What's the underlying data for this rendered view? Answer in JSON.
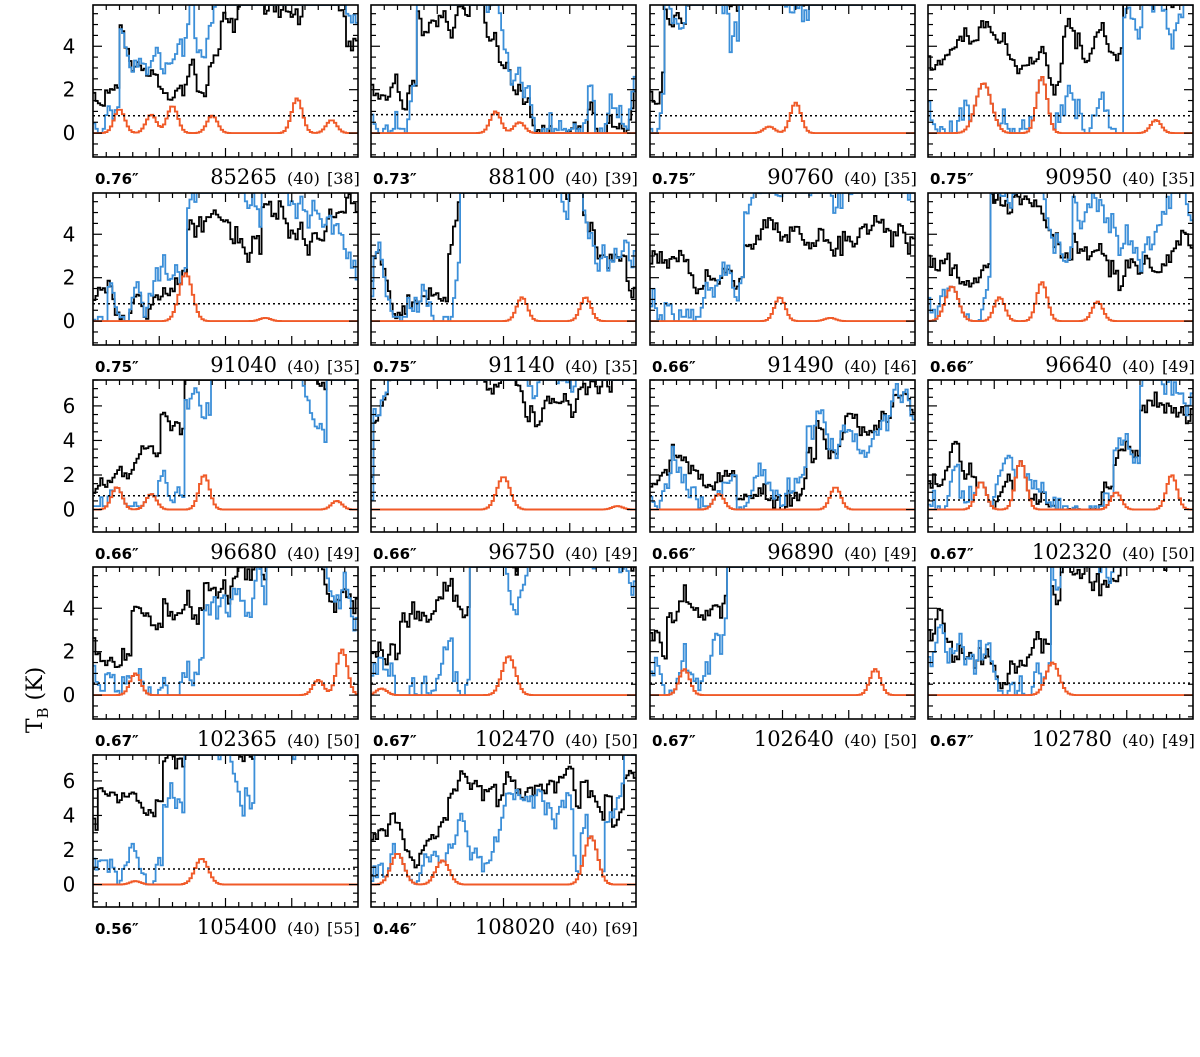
{
  "chart_data": {
    "type": "line",
    "ylabel": "T",
    "ylabel_sub": "B",
    "ylabel_unit": " (K)",
    "series_styles": [
      {
        "name": "observed",
        "color": "#000000"
      },
      {
        "name": "model_all",
        "color": "#3c8fd8"
      },
      {
        "name": "model_species",
        "color": "#f05a28"
      }
    ],
    "panels": [
      {
        "id": "p1",
        "freq": "85265",
        "width": "(40)",
        "index": "[38]",
        "beam": "0.76″",
        "ylim": [
          -1.1,
          5.9
        ],
        "yticks": [
          0,
          2,
          4
        ],
        "noise": 0.8,
        "seed": 11,
        "peaks": [
          [
            0.1,
            1.1,
            0.02
          ],
          [
            0.22,
            0.85,
            0.02
          ],
          [
            0.3,
            1.25,
            0.02
          ],
          [
            0.45,
            0.8,
            0.02
          ],
          [
            0.77,
            1.6,
            0.02
          ],
          [
            0.9,
            0.6,
            0.02
          ]
        ]
      },
      {
        "id": "p2",
        "freq": "88100",
        "width": "(40)",
        "index": "[39]",
        "beam": "0.73″",
        "ylim": [
          -1.1,
          5.9
        ],
        "yticks": [
          0,
          2,
          4
        ],
        "noise": 0.85,
        "seed": 23,
        "peaks": [
          [
            0.47,
            1.0,
            0.02
          ],
          [
            0.56,
            0.5,
            0.02
          ]
        ]
      },
      {
        "id": "p3",
        "freq": "90760",
        "width": "(40)",
        "index": "[35]",
        "beam": "0.75″",
        "ylim": [
          -1.1,
          5.9
        ],
        "yticks": [
          0,
          2,
          4
        ],
        "noise": 0.8,
        "seed": 37,
        "peaks": [
          [
            0.55,
            1.4,
            0.02
          ],
          [
            0.45,
            0.3,
            0.02
          ]
        ]
      },
      {
        "id": "p4",
        "freq": "90950",
        "width": "(40)",
        "index": "[35]",
        "beam": "0.75″",
        "ylim": [
          -1.1,
          5.9
        ],
        "yticks": [
          0,
          2,
          4
        ],
        "noise": 0.8,
        "seed": 41,
        "peaks": [
          [
            0.21,
            2.3,
            0.03
          ],
          [
            0.43,
            2.6,
            0.02
          ],
          [
            0.86,
            0.6,
            0.02
          ]
        ]
      },
      {
        "id": "p5",
        "freq": "91040",
        "width": "(40)",
        "index": "[35]",
        "beam": "0.75″",
        "ylim": [
          -1.1,
          5.9
        ],
        "yticks": [
          0,
          2,
          4
        ],
        "noise": 0.8,
        "seed": 53,
        "peaks": [
          [
            0.35,
            2.2,
            0.025
          ],
          [
            0.65,
            0.15,
            0.02
          ]
        ]
      },
      {
        "id": "p6",
        "freq": "91140",
        "width": "(40)",
        "index": "[35]",
        "beam": "0.75″",
        "ylim": [
          -1.1,
          5.9
        ],
        "yticks": [
          0,
          2,
          4
        ],
        "noise": 0.8,
        "seed": 67,
        "peaks": [
          [
            0.57,
            1.1,
            0.02
          ],
          [
            0.81,
            1.1,
            0.02
          ]
        ]
      },
      {
        "id": "p7",
        "freq": "91490",
        "width": "(40)",
        "index": "[46]",
        "beam": "0.66″",
        "ylim": [
          -1.1,
          5.9
        ],
        "yticks": [
          0,
          2,
          4
        ],
        "noise": 0.8,
        "seed": 71,
        "peaks": [
          [
            0.49,
            1.1,
            0.02
          ],
          [
            0.68,
            0.15,
            0.02
          ]
        ]
      },
      {
        "id": "p8",
        "freq": "96640",
        "width": "(40)",
        "index": "[49]",
        "beam": "0.66″",
        "ylim": [
          -1.1,
          5.9
        ],
        "yticks": [
          0,
          2,
          4
        ],
        "noise": 0.8,
        "seed": 83,
        "peaks": [
          [
            0.09,
            1.6,
            0.025
          ],
          [
            0.27,
            1.1,
            0.02
          ],
          [
            0.43,
            1.8,
            0.02
          ],
          [
            0.64,
            0.9,
            0.02
          ]
        ]
      },
      {
        "id": "p9",
        "freq": "96680",
        "width": "(40)",
        "index": "[49]",
        "beam": "0.66″",
        "ylim": [
          -1.3,
          7.5
        ],
        "yticks": [
          0,
          2,
          4,
          6
        ],
        "noise": 0.8,
        "seed": 97,
        "peaks": [
          [
            0.09,
            1.3,
            0.02
          ],
          [
            0.22,
            0.9,
            0.02
          ],
          [
            0.42,
            2.0,
            0.02
          ],
          [
            0.92,
            0.5,
            0.02
          ]
        ]
      },
      {
        "id": "p10",
        "freq": "96750",
        "width": "(40)",
        "index": "[49]",
        "beam": "0.66″",
        "ylim": [
          -1.3,
          7.5
        ],
        "yticks": [
          0,
          2,
          4,
          6
        ],
        "noise": 0.8,
        "seed": 103,
        "peaks": [
          [
            0.5,
            1.9,
            0.025
          ],
          [
            0.93,
            0.2,
            0.02
          ]
        ]
      },
      {
        "id": "p11",
        "freq": "96890",
        "width": "(40)",
        "index": "[49]",
        "beam": "0.66″",
        "ylim": [
          -1.3,
          7.5
        ],
        "yticks": [
          0,
          2,
          4,
          6
        ],
        "noise": 0.8,
        "seed": 109,
        "peaks": [
          [
            0.26,
            0.9,
            0.02
          ],
          [
            0.7,
            1.3,
            0.02
          ]
        ]
      },
      {
        "id": "p12",
        "freq": "102320",
        "width": "(40)",
        "index": "[50]",
        "beam": "0.67″",
        "ylim": [
          -1.3,
          7.5
        ],
        "yticks": [
          0,
          2,
          4,
          6
        ],
        "noise": 0.55,
        "seed": 113,
        "peaks": [
          [
            0.2,
            1.6,
            0.02
          ],
          [
            0.35,
            2.8,
            0.02
          ],
          [
            0.71,
            1.0,
            0.02
          ],
          [
            0.92,
            2.0,
            0.02
          ]
        ]
      },
      {
        "id": "p13",
        "freq": "102365",
        "width": "(40)",
        "index": "[50]",
        "beam": "0.67″",
        "ylim": [
          -1.1,
          5.9
        ],
        "yticks": [
          0,
          2,
          4
        ],
        "noise": 0.55,
        "seed": 127,
        "peaks": [
          [
            0.16,
            1.0,
            0.02
          ],
          [
            0.85,
            0.7,
            0.02
          ],
          [
            0.94,
            2.1,
            0.02
          ]
        ]
      },
      {
        "id": "p14",
        "freq": "102470",
        "width": "(40)",
        "index": "[50]",
        "beam": "0.67″",
        "ylim": [
          -1.1,
          5.9
        ],
        "yticks": [
          0,
          2,
          4
        ],
        "noise": 0.55,
        "seed": 131,
        "peaks": [
          [
            0.04,
            0.3,
            0.02
          ],
          [
            0.52,
            1.8,
            0.025
          ]
        ]
      },
      {
        "id": "p15",
        "freq": "102640",
        "width": "(40)",
        "index": "[50]",
        "beam": "0.67″",
        "ylim": [
          -1.1,
          5.9
        ],
        "yticks": [
          0,
          2,
          4
        ],
        "noise": 0.55,
        "seed": 137,
        "peaks": [
          [
            0.13,
            1.2,
            0.02
          ],
          [
            0.85,
            1.2,
            0.02
          ]
        ]
      },
      {
        "id": "p16",
        "freq": "102780",
        "width": "(40)",
        "index": "[49]",
        "beam": "0.67″",
        "ylim": [
          -1.1,
          5.9
        ],
        "yticks": [
          0,
          2,
          4
        ],
        "noise": 0.55,
        "seed": 139,
        "peaks": [
          [
            0.47,
            1.5,
            0.025
          ]
        ]
      },
      {
        "id": "p17",
        "freq": "105400",
        "width": "(40)",
        "index": "[55]",
        "beam": "0.56″",
        "ylim": [
          -1.3,
          7.5
        ],
        "yticks": [
          0,
          2,
          4,
          6
        ],
        "noise": 0.9,
        "seed": 149,
        "peaks": [
          [
            0.16,
            0.2,
            0.02
          ],
          [
            0.41,
            1.5,
            0.025
          ]
        ]
      },
      {
        "id": "p18",
        "freq": "108020",
        "width": "(40)",
        "index": "[69]",
        "beam": "0.46″",
        "ylim": [
          -1.3,
          7.5
        ],
        "yticks": [
          0,
          2,
          4,
          6
        ],
        "noise": 0.55,
        "seed": 151,
        "peaks": [
          [
            0.1,
            1.8,
            0.025
          ],
          [
            0.27,
            1.4,
            0.025
          ],
          [
            0.83,
            2.8,
            0.025
          ]
        ]
      }
    ]
  }
}
